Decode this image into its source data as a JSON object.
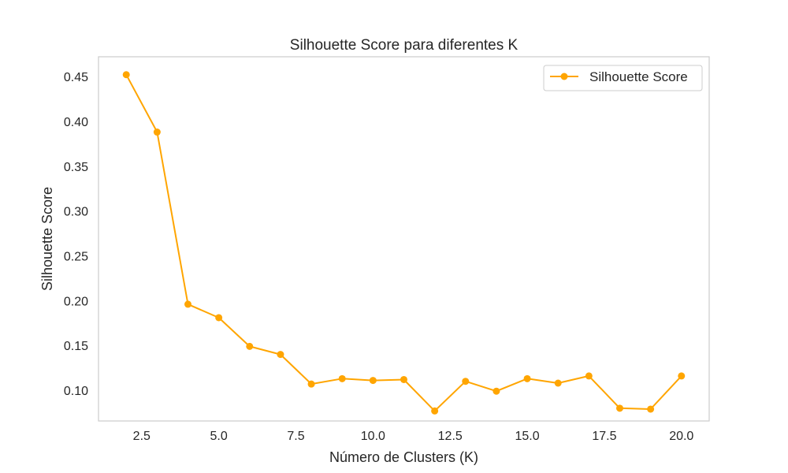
{
  "chart_data": {
    "type": "line",
    "title": "Silhouette Score para diferentes K",
    "xlabel": "Número de Clusters (K)",
    "ylabel": "Silhouette Score",
    "xlim": [
      1.1,
      20.9
    ],
    "ylim": [
      0.0658,
      0.472
    ],
    "xticks": [
      2.5,
      5.0,
      7.5,
      10.0,
      12.5,
      15.0,
      17.5,
      20.0
    ],
    "xtick_labels": [
      "2.5",
      "5.0",
      "7.5",
      "10.0",
      "12.5",
      "15.0",
      "17.5",
      "20.0"
    ],
    "yticks": [
      0.1,
      0.15,
      0.2,
      0.25,
      0.3,
      0.35,
      0.4,
      0.45
    ],
    "ytick_labels": [
      "0.10",
      "0.15",
      "0.20",
      "0.25",
      "0.30",
      "0.35",
      "0.40",
      "0.45"
    ],
    "grid": false,
    "legend": {
      "position": "top-right"
    },
    "series": [
      {
        "name": "Silhouette Score",
        "color": "#ffa500",
        "marker": "circle",
        "x": [
          2,
          3,
          4,
          5,
          6,
          7,
          8,
          9,
          10,
          11,
          12,
          13,
          14,
          15,
          16,
          17,
          18,
          19,
          20
        ],
        "y": [
          0.452,
          0.388,
          0.196,
          0.181,
          0.149,
          0.14,
          0.107,
          0.113,
          0.111,
          0.112,
          0.077,
          0.11,
          0.099,
          0.113,
          0.108,
          0.116,
          0.08,
          0.079,
          0.116
        ]
      }
    ]
  }
}
